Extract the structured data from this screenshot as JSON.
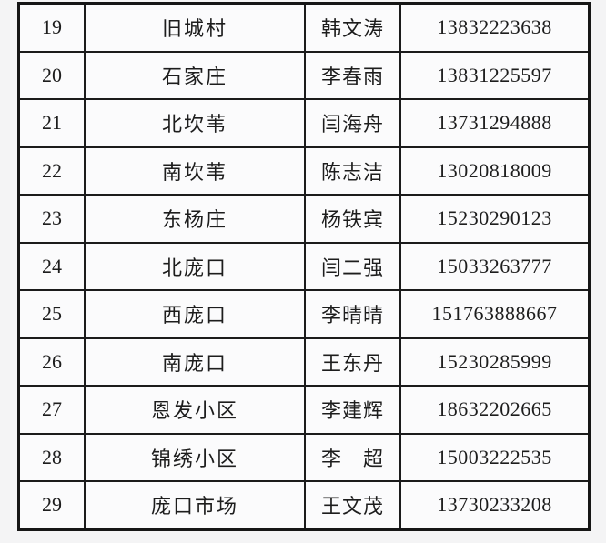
{
  "table": {
    "description": "Contact list table segment (rows 19-29): serial number, location, contact person, phone number",
    "columns": [
      {
        "key": "no",
        "name": "serial-number"
      },
      {
        "key": "location",
        "name": "location-name"
      },
      {
        "key": "contact",
        "name": "contact-person"
      },
      {
        "key": "phone",
        "name": "phone-number"
      }
    ],
    "rows": [
      {
        "no": "19",
        "location": "旧城村",
        "contact": "韩文涛",
        "phone": "13832223638"
      },
      {
        "no": "20",
        "location": "石家庄",
        "contact": "李春雨",
        "phone": "13831225597"
      },
      {
        "no": "21",
        "location": "北坎苇",
        "contact": "闫海舟",
        "phone": "13731294888"
      },
      {
        "no": "22",
        "location": "南坎苇",
        "contact": "陈志洁",
        "phone": "13020818009"
      },
      {
        "no": "23",
        "location": "东杨庄",
        "contact": "杨铁宾",
        "phone": "15230290123"
      },
      {
        "no": "24",
        "location": "北庞口",
        "contact": "闫二强",
        "phone": "15033263777"
      },
      {
        "no": "25",
        "location": "西庞口",
        "contact": "李晴晴",
        "phone": "151763888667"
      },
      {
        "no": "26",
        "location": "南庞口",
        "contact": "王东丹",
        "phone": "15230285999"
      },
      {
        "no": "27",
        "location": "恩发小区",
        "contact": "李建辉",
        "phone": "18632202665"
      },
      {
        "no": "28",
        "location": "锦绣小区",
        "contact": "李　超",
        "phone": "15003222535"
      },
      {
        "no": "29",
        "location": "庞口市场",
        "contact": "王文茂",
        "phone": "13730233208"
      }
    ]
  },
  "colors": {
    "page_background": "#f4f4f5",
    "cell_background": "#fbfbfc",
    "border": "#1b1b1b",
    "text": "#1d1d1d"
  }
}
